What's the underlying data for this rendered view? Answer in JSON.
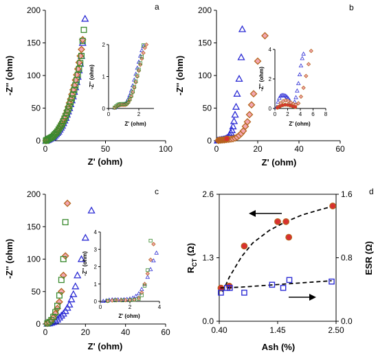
{
  "figure": {
    "panel_letters": [
      "a",
      "b",
      "c",
      "d"
    ]
  },
  "marker_styles": {
    "triangle": {
      "stroke": "#2b2bd4"
    },
    "diamond": {
      "stroke": "#b5651d",
      "fill": "#f4a6b2"
    },
    "square": {
      "stroke": "#3a8a2e"
    },
    "circle": {
      "stroke": "#b5651d",
      "fill": "#d93030"
    }
  },
  "chart_data": [
    {
      "panel": "a",
      "type": "scatter",
      "xlabel": "Z' (ohm)",
      "ylabel": "-Z'' (ohm)",
      "xlim": [
        0,
        100
      ],
      "ylim": [
        0,
        200
      ],
      "xticks": [
        0,
        50,
        100
      ],
      "yticks": [
        0,
        50,
        100,
        150,
        200
      ],
      "series": [
        {
          "marker": "triangle",
          "x": [
            0.5,
            1,
            2,
            3,
            4,
            5,
            6,
            7,
            8,
            9,
            10,
            11,
            12,
            13,
            14,
            15,
            16,
            17,
            18,
            19,
            20,
            21,
            22,
            23,
            24,
            25,
            26,
            27,
            28,
            29,
            30,
            31,
            33
          ],
          "y": [
            0,
            0.5,
            1,
            2,
            3,
            4,
            5,
            6,
            8,
            10,
            12,
            14,
            17,
            20,
            23,
            27,
            31,
            35,
            40,
            45,
            50,
            56,
            62,
            68,
            75,
            82,
            90,
            98,
            108,
            118,
            130,
            150,
            187
          ]
        },
        {
          "marker": "diamond",
          "x": [
            0.5,
            1,
            2,
            3,
            4,
            5,
            6,
            7,
            8,
            9,
            10,
            11,
            12,
            13,
            14,
            15,
            16,
            17,
            18,
            19,
            20,
            21,
            22,
            23,
            24,
            25,
            26,
            27,
            28,
            29,
            30,
            31
          ],
          "y": [
            0,
            1,
            2,
            3,
            4,
            5,
            7,
            9,
            11,
            13,
            15,
            18,
            21,
            24,
            28,
            32,
            36,
            41,
            46,
            52,
            58,
            64,
            71,
            78,
            85,
            93,
            101,
            110,
            120,
            130,
            140,
            155
          ]
        },
        {
          "marker": "square",
          "x": [
            0.5,
            1,
            2,
            3,
            4,
            5,
            6,
            7,
            8,
            9,
            10,
            11,
            12,
            13,
            14,
            15,
            16,
            17,
            18,
            19,
            20,
            21,
            22,
            23,
            24,
            25,
            26,
            27,
            28,
            29,
            30,
            31,
            32
          ],
          "y": [
            0,
            1,
            2,
            3,
            4,
            5,
            6,
            8,
            10,
            12,
            14,
            17,
            20,
            23,
            26,
            30,
            34,
            38,
            43,
            48,
            53,
            59,
            65,
            71,
            78,
            85,
            93,
            101,
            110,
            119,
            130,
            153,
            170
          ]
        }
      ],
      "inset": {
        "xlabel": "Z' (ohm)",
        "ylabel": "-Z'' (ohm)",
        "xlim": [
          0,
          3
        ],
        "ylim": [
          0,
          2
        ],
        "xticks": [
          0,
          2
        ],
        "yticks": [
          0,
          1,
          2
        ],
        "series": [
          {
            "marker": "triangle",
            "x": [
              0.4,
              0.5,
              0.6,
              0.7,
              0.8,
              0.9,
              1.0,
              1.1,
              1.2,
              1.3,
              1.4,
              1.5,
              1.6,
              1.7,
              1.8,
              1.9,
              2.0,
              2.1,
              2.2,
              2.3
            ],
            "y": [
              0.02,
              0.05,
              0.09,
              0.11,
              0.12,
              0.12,
              0.13,
              0.15,
              0.2,
              0.3,
              0.42,
              0.56,
              0.72,
              0.9,
              1.08,
              1.27,
              1.46,
              1.65,
              1.82,
              1.95
            ]
          },
          {
            "marker": "diamond",
            "x": [
              0.4,
              0.5,
              0.6,
              0.7,
              0.8,
              0.9,
              1.0,
              1.1,
              1.2,
              1.3,
              1.4,
              1.5,
              1.6,
              1.7,
              1.8,
              1.9,
              2.0,
              2.1,
              2.2,
              2.3,
              2.4,
              2.5
            ],
            "y": [
              0.02,
              0.05,
              0.08,
              0.1,
              0.11,
              0.11,
              0.11,
              0.11,
              0.13,
              0.18,
              0.26,
              0.37,
              0.5,
              0.65,
              0.82,
              1.0,
              1.18,
              1.37,
              1.56,
              1.74,
              1.9,
              2.0
            ]
          },
          {
            "marker": "square",
            "x": [
              0.4,
              0.5,
              0.6,
              0.7,
              0.8,
              0.9,
              1.0,
              1.1,
              1.2,
              1.3,
              1.4,
              1.5,
              1.6,
              1.7,
              1.8,
              1.9,
              2.0,
              2.1,
              2.2,
              2.3
            ],
            "y": [
              0.03,
              0.07,
              0.11,
              0.13,
              0.14,
              0.14,
              0.14,
              0.14,
              0.16,
              0.21,
              0.29,
              0.4,
              0.53,
              0.68,
              0.85,
              1.03,
              1.22,
              1.42,
              1.62,
              1.98
            ]
          }
        ]
      }
    },
    {
      "panel": "b",
      "type": "scatter",
      "xlabel": "Z' (ohm)",
      "ylabel": "-Z'' (ohm)",
      "xlim": [
        0,
        60
      ],
      "ylim": [
        0,
        200
      ],
      "xticks": [
        0,
        20,
        40,
        60
      ],
      "yticks": [
        0,
        50,
        100,
        150,
        200
      ],
      "series": [
        {
          "marker": "triangle",
          "x": [
            0.5,
            1,
            1.5,
            2,
            2.5,
            3,
            3.5,
            4,
            4.5,
            5,
            5.5,
            6,
            6.5,
            7,
            7.5,
            8,
            8.5,
            9,
            9.5,
            10,
            11,
            12,
            12.5
          ],
          "y": [
            0.3,
            0.6,
            0.9,
            1.2,
            1.5,
            1.8,
            2,
            2.5,
            3,
            4,
            5,
            7,
            9,
            12,
            16,
            22,
            30,
            40,
            52,
            72,
            95,
            128,
            171
          ]
        },
        {
          "marker": "diamond",
          "x": [
            1,
            2,
            3,
            4,
            5,
            6,
            7,
            8,
            9,
            10,
            11,
            12,
            13,
            14,
            15,
            16,
            17,
            18,
            20,
            23.5
          ],
          "y": [
            0.5,
            1,
            1.2,
            1.4,
            1.7,
            2,
            2.5,
            3,
            4,
            5.5,
            8,
            11,
            15,
            22,
            29,
            40,
            55,
            72,
            122,
            161
          ]
        },
        {
          "marker": "circle",
          "x": [
            1,
            1.5,
            2,
            2.5,
            3,
            3.5,
            4,
            4.5,
            5
          ],
          "y": [
            0.5,
            0.8,
            1,
            1.1,
            1.2,
            1.3,
            1.5,
            2,
            3
          ]
        }
      ],
      "inset": {
        "xlabel": "Z' (ohm)",
        "ylabel": "-Z'' (ohm)",
        "xlim": [
          0,
          8
        ],
        "ylim": [
          0,
          4
        ],
        "xticks": [
          0,
          2,
          4,
          6,
          8
        ],
        "yticks": [
          0,
          2,
          4
        ],
        "series": [
          {
            "marker": "triangle",
            "x": [
              0.3,
              0.5,
              0.7,
              0.9,
              1.1,
              1.3,
              1.5,
              1.7,
              1.9,
              2.1,
              2.3,
              2.5,
              2.7,
              2.9,
              3.1,
              3.3,
              3.5,
              3.7,
              3.9,
              4.1,
              4.3,
              4.5
            ],
            "y": [
              0.1,
              0.45,
              0.7,
              0.85,
              0.9,
              0.9,
              0.88,
              0.85,
              0.78,
              0.68,
              0.55,
              0.4,
              0.3,
              0.3,
              0.45,
              0.75,
              1.2,
              1.7,
              2.3,
              2.9,
              3.4,
              3.7
            ]
          },
          {
            "marker": "diamond",
            "x": [
              0.5,
              0.9,
              1.3,
              1.7,
              2.1,
              2.5,
              2.9,
              3.3,
              3.7,
              4.1,
              4.5,
              4.9,
              5.3,
              5.7
            ],
            "y": [
              0.1,
              0.35,
              0.5,
              0.55,
              0.5,
              0.4,
              0.3,
              0.25,
              0.35,
              0.8,
              1.4,
              2.2,
              3.0,
              3.9
            ]
          },
          {
            "marker": "circle",
            "x": [
              0.4,
              0.8,
              1.2,
              1.6,
              2.0,
              2.4,
              2.8,
              3.2
            ],
            "y": [
              0.05,
              0.15,
              0.22,
              0.25,
              0.24,
              0.2,
              0.15,
              0.1
            ]
          }
        ]
      }
    },
    {
      "panel": "c",
      "type": "scatter",
      "xlabel": "Z' (ohm)",
      "ylabel": "-Z'' (ohm)",
      "xlim": [
        0,
        60
      ],
      "ylim": [
        0,
        200
      ],
      "xticks": [
        0,
        20,
        40,
        60
      ],
      "yticks": [
        0,
        50,
        100,
        150,
        200
      ],
      "series": [
        {
          "marker": "triangle",
          "x": [
            1,
            2,
            3,
            4,
            5,
            6,
            7,
            8,
            9,
            10,
            11,
            12,
            13,
            14,
            15,
            16,
            18,
            20,
            23
          ],
          "y": [
            0.5,
            1,
            2,
            3,
            5,
            7,
            10,
            13,
            16,
            20,
            25,
            30,
            38,
            46,
            58,
            75,
            100,
            133,
            175
          ]
        },
        {
          "marker": "diamond",
          "x": [
            1,
            2,
            3,
            4,
            5,
            6,
            7,
            8,
            9,
            10,
            11
          ],
          "y": [
            1,
            3,
            6,
            10,
            16,
            24,
            34,
            50,
            75,
            105,
            186
          ]
        },
        {
          "marker": "square",
          "x": [
            1,
            2,
            3,
            4,
            5,
            6,
            7,
            8,
            9,
            10
          ],
          "y": [
            1,
            3,
            6,
            11,
            18,
            28,
            44,
            68,
            100,
            157
          ]
        }
      ],
      "inset": {
        "xlabel": "Z' (ohm)",
        "ylabel": "-Z'' (ohm)",
        "xlim": [
          0,
          4
        ],
        "ylim": [
          0,
          4
        ],
        "xticks": [
          0,
          2,
          4
        ],
        "yticks": [
          0,
          1,
          2,
          3,
          4
        ],
        "series": [
          {
            "marker": "triangle",
            "x": [
              0.2,
              0.4,
              0.6,
              0.8,
              1.0,
              1.2,
              1.4,
              1.6,
              1.8,
              2.0,
              2.2,
              2.4,
              2.6,
              2.8,
              3.0,
              3.2,
              3.4,
              3.6,
              3.8
            ],
            "y": [
              0.02,
              0.05,
              0.08,
              0.1,
              0.1,
              0.1,
              0.1,
              0.11,
              0.12,
              0.15,
              0.2,
              0.3,
              0.45,
              0.7,
              1.0,
              1.4,
              1.85,
              2.35,
              2.8
            ]
          },
          {
            "marker": "diamond",
            "x": [
              0.5,
              0.8,
              1.1,
              1.4,
              1.7,
              2.0,
              2.3,
              2.6,
              2.8,
              3.0,
              3.2,
              3.4,
              3.6
            ],
            "y": [
              0.02,
              0.05,
              0.07,
              0.07,
              0.07,
              0.08,
              0.1,
              0.2,
              0.5,
              1.0,
              1.6,
              2.4,
              3.3
            ]
          },
          {
            "marker": "square",
            "x": [
              0.5,
              1.0,
              1.5,
              2.0,
              2.3,
              2.6,
              2.8,
              3.0,
              3.2,
              3.4
            ],
            "y": [
              0.03,
              0.06,
              0.06,
              0.07,
              0.09,
              0.15,
              0.35,
              0.9,
              1.8,
              3.5
            ]
          }
        ]
      }
    },
    {
      "panel": "d",
      "type": "scatter",
      "xlabel": "Ash (%)",
      "ylabel_left_main": "R",
      "ylabel_left_sub": "CT",
      "ylabel_left_unit": " (Ω)",
      "ylabel_right": "ESR (Ω)",
      "xlim": [
        0.4,
        2.5
      ],
      "xticks": [
        0.4,
        1.45,
        2.5
      ],
      "xtick_labels": [
        "0.40",
        "1.45",
        "2.50"
      ],
      "ylim_left": [
        0,
        2.6
      ],
      "yticks_left": [
        0,
        1.3,
        2.6
      ],
      "ytick_labels_left": [
        "0.0",
        "1.3",
        "2.6"
      ],
      "ylim_right": [
        0,
        1.6
      ],
      "yticks_right": [
        0,
        0.8,
        1.6
      ],
      "ytick_labels_right": [
        "0.0",
        "0.8",
        "1.6"
      ],
      "series": [
        {
          "name": "RCT",
          "marker": "circle",
          "axis": "left",
          "x": [
            0.43,
            0.58,
            0.85,
            1.45,
            1.6,
            1.65,
            2.44
          ],
          "y": [
            0.68,
            0.72,
            1.54,
            2.04,
            2.04,
            1.72,
            2.36
          ],
          "fit": {
            "x": [
              0.46,
              0.58,
              0.8,
              1.0,
              1.3,
              1.6,
              1.9,
              2.2,
              2.46
            ],
            "y": [
              0.6,
              0.9,
              1.32,
              1.6,
              1.86,
              2.04,
              2.18,
              2.28,
              2.36
            ]
          }
        },
        {
          "name": "ESR",
          "marker": "square",
          "axis": "right",
          "x": [
            0.43,
            0.54,
            0.59,
            0.85,
            1.35,
            1.55,
            1.66,
            2.42
          ],
          "y": [
            0.36,
            0.42,
            0.42,
            0.36,
            0.46,
            0.42,
            0.52,
            0.5
          ],
          "fit": {
            "x": [
              0.42,
              0.8,
              1.2,
              1.6,
              2.0,
              2.42
            ],
            "y": [
              0.42,
              0.43,
              0.45,
              0.47,
              0.49,
              0.51
            ]
          }
        }
      ]
    }
  ]
}
